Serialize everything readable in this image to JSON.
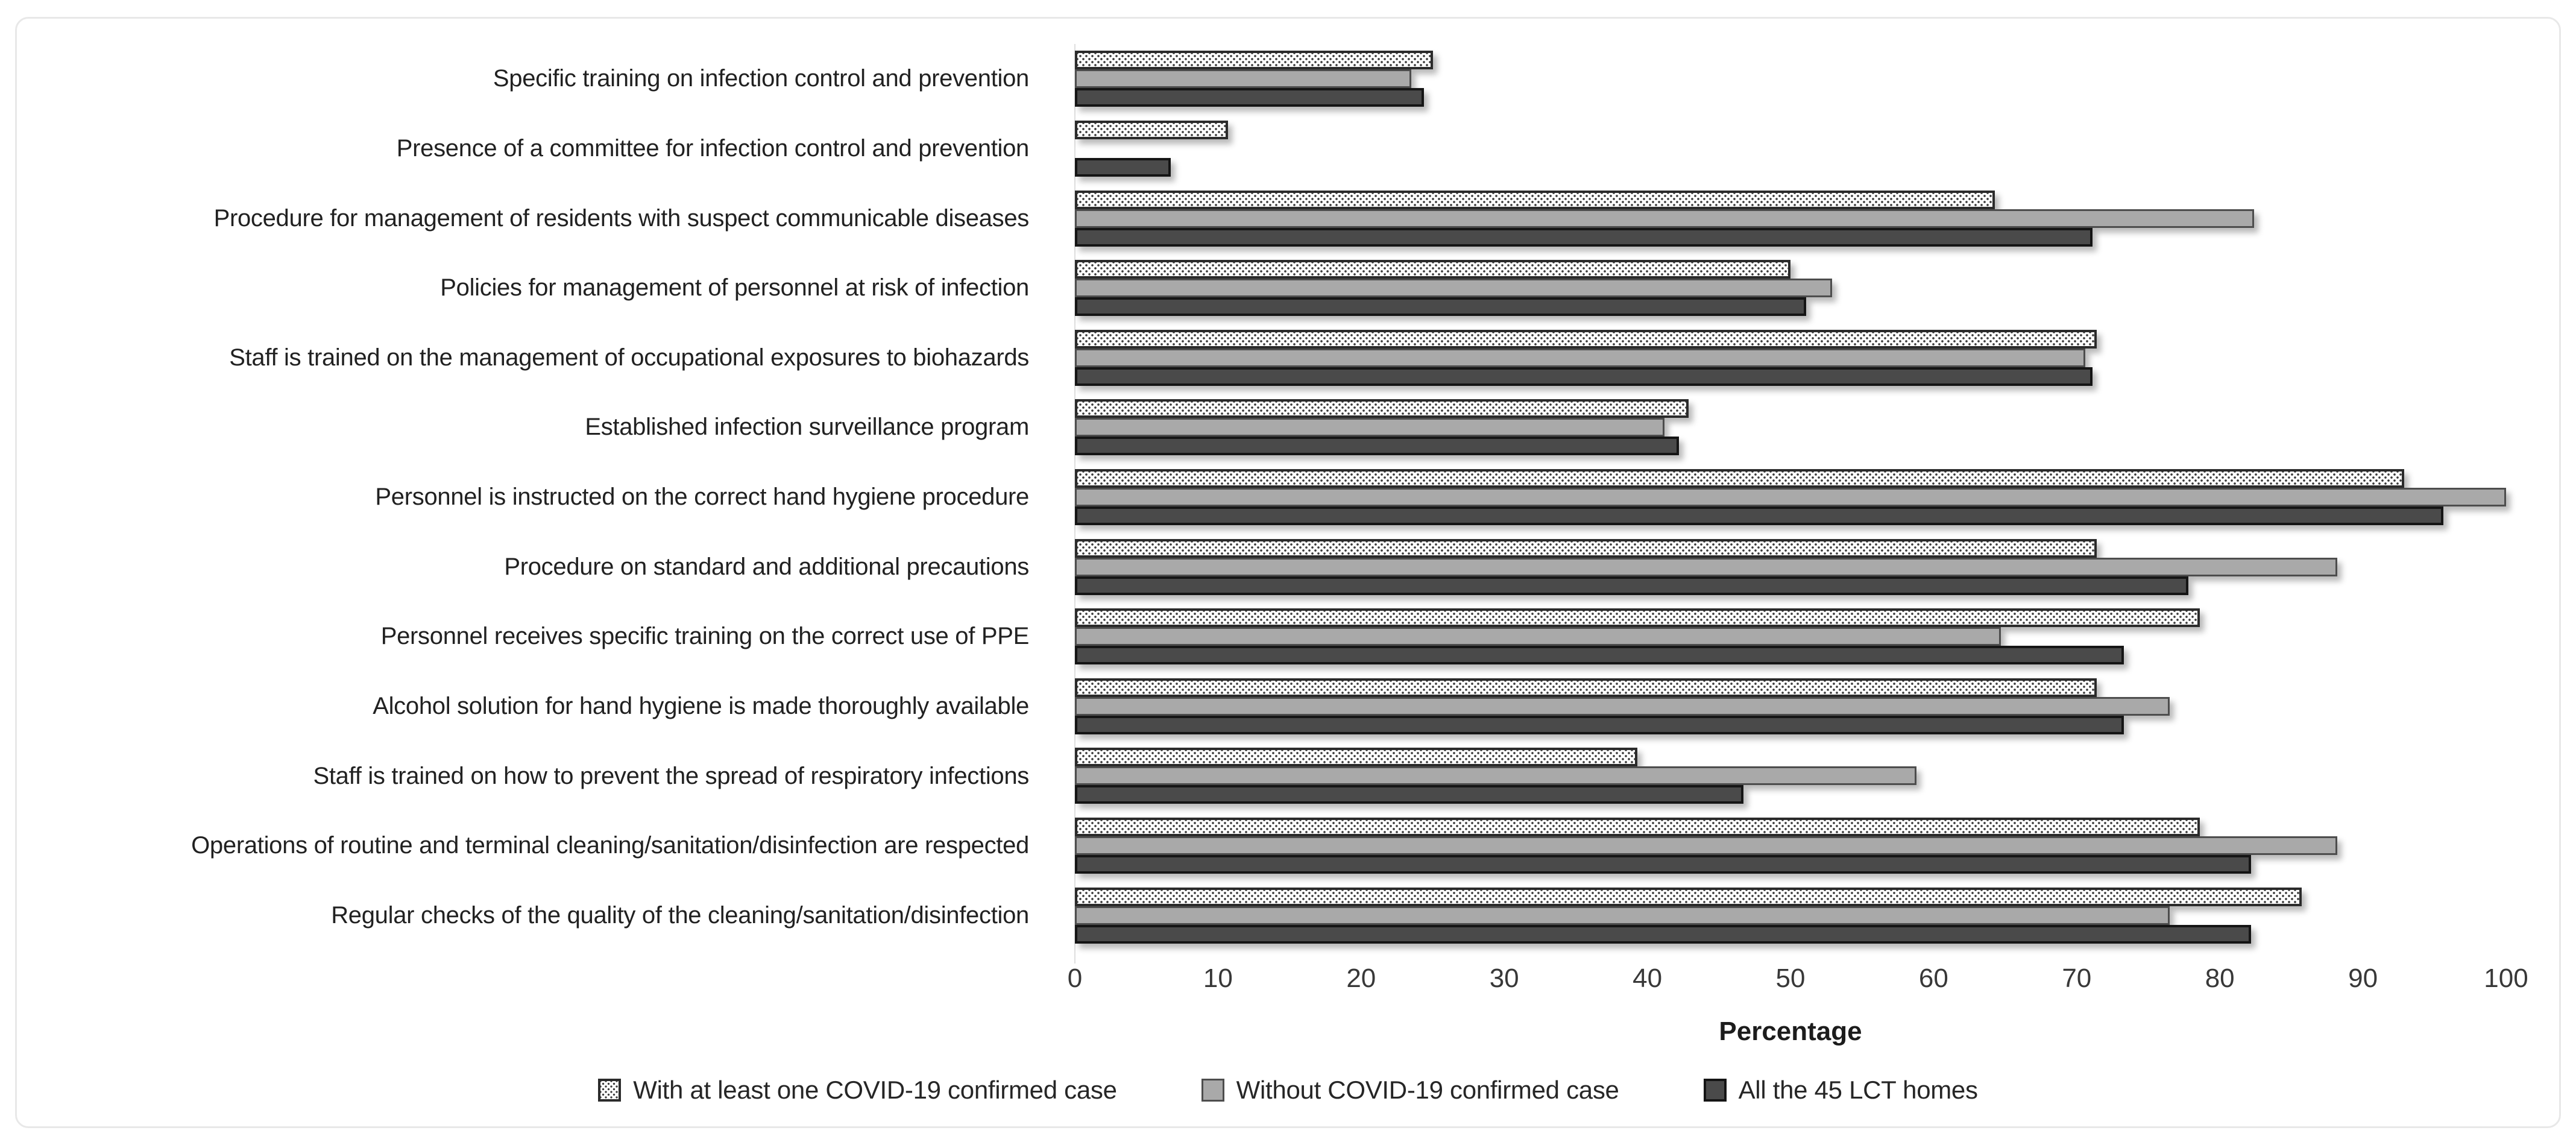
{
  "chart_data": {
    "type": "bar",
    "orientation": "horizontal",
    "title": "",
    "xlabel": "Percentage",
    "ylabel": "",
    "xlim": [
      0,
      100
    ],
    "x_ticks": [
      0,
      10,
      20,
      30,
      40,
      50,
      60,
      70,
      80,
      90,
      100
    ],
    "grid": false,
    "legend_position": "bottom",
    "bar_order_note": "Within each category group, bars top-to-bottom: dotted, gray, dark",
    "categories": [
      "Specific training on infection control and prevention",
      "Presence of a committee for infection control and prevention",
      "Procedure for management of residents with suspect communicable diseases",
      "Policies for management of personnel at risk of infection",
      "Staff is trained on the management of occupational exposures to biohazards",
      "Established infection surveillance program",
      "Personnel is instructed on the correct hand hygiene procedure",
      "Procedure on standard and additional precautions",
      "Personnel receives specific training on the correct use of PPE",
      "Alcohol solution for hand hygiene is made thoroughly available",
      "Staff is trained on how to prevent the spread of respiratory infections",
      "Operations of routine and terminal cleaning/sanitation/disinfection are respected",
      "Regular checks of the quality of the cleaning/sanitation/disinfection"
    ],
    "series": [
      {
        "name": "With at least one COVID-19 confirmed case",
        "style": "dotted-pattern-white",
        "values": [
          25.0,
          10.7,
          64.3,
          50.0,
          71.4,
          42.9,
          92.9,
          71.4,
          78.6,
          71.4,
          39.3,
          78.6,
          85.7
        ]
      },
      {
        "name": "Without COVID-19 confirmed case",
        "style": "solid-gray",
        "color": "#a9a9a9",
        "values": [
          23.5,
          0,
          82.4,
          52.9,
          70.6,
          41.2,
          100,
          88.2,
          64.7,
          76.5,
          58.8,
          88.2,
          76.5
        ]
      },
      {
        "name": "All the 45 LCT homes",
        "style": "solid-dark-gray",
        "color": "#4a4a4a",
        "values": [
          24.4,
          6.7,
          71.1,
          51.1,
          71.1,
          42.2,
          95.6,
          77.8,
          73.3,
          73.3,
          46.7,
          82.2,
          82.2
        ]
      }
    ]
  },
  "colors": {
    "background": "#ffffff",
    "frame_border": "#e8e8e8",
    "bar_dotted_border": "#2b2b2b",
    "bar_gray_fill": "#a9a9a9",
    "bar_dark_fill": "#4a4a4a",
    "tick_text": "#383838",
    "label_text": "#212121"
  }
}
